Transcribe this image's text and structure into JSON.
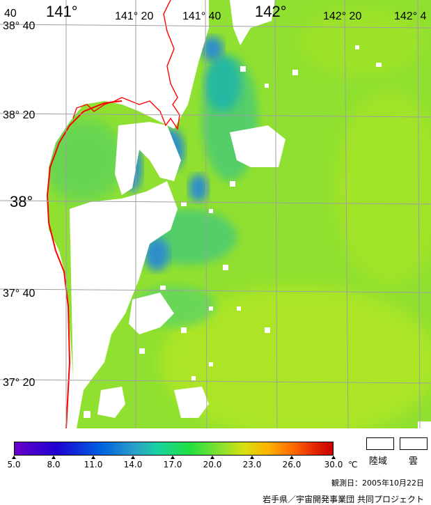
{
  "map": {
    "lon_labels_large": [
      "141°",
      "142°"
    ],
    "lon_labels_small": [
      "141° 20",
      "141° 40",
      "142° 20",
      "142° 4"
    ],
    "lat_labels": [
      "38° 40",
      "38° 20",
      "38°",
      "37° 40",
      "37° 20"
    ],
    "corner_label": "40",
    "colors": {
      "sea_main": "#8fe030",
      "sea_yellow": "#b8e820",
      "sea_cool": "#50cc70",
      "sea_cyan": "#28b8a0",
      "sea_blue": "#2e8fc8",
      "cloud_land": "#ffffff",
      "coastline": "#ff0000",
      "grid": "#a0a0a0"
    }
  },
  "colorbar": {
    "ticks": [
      "5.0",
      "8.0",
      "11.0",
      "14.0",
      "17.0",
      "20.0",
      "23.0",
      "26.0",
      "30.0"
    ],
    "unit": "℃",
    "colors": [
      "#6a00c8",
      "#1e00d2",
      "#0060e0",
      "#2ba0c8",
      "#18d2a0",
      "#20e040",
      "#7fe030",
      "#d7e010",
      "#ffb000",
      "#ff6400",
      "#c80000"
    ]
  },
  "legend": {
    "land": "陸域",
    "cloud": "雲"
  },
  "observation_date": "観測日：2005年10月22日",
  "credit": "岩手県／宇宙開発事業団 共同プロジェクト"
}
